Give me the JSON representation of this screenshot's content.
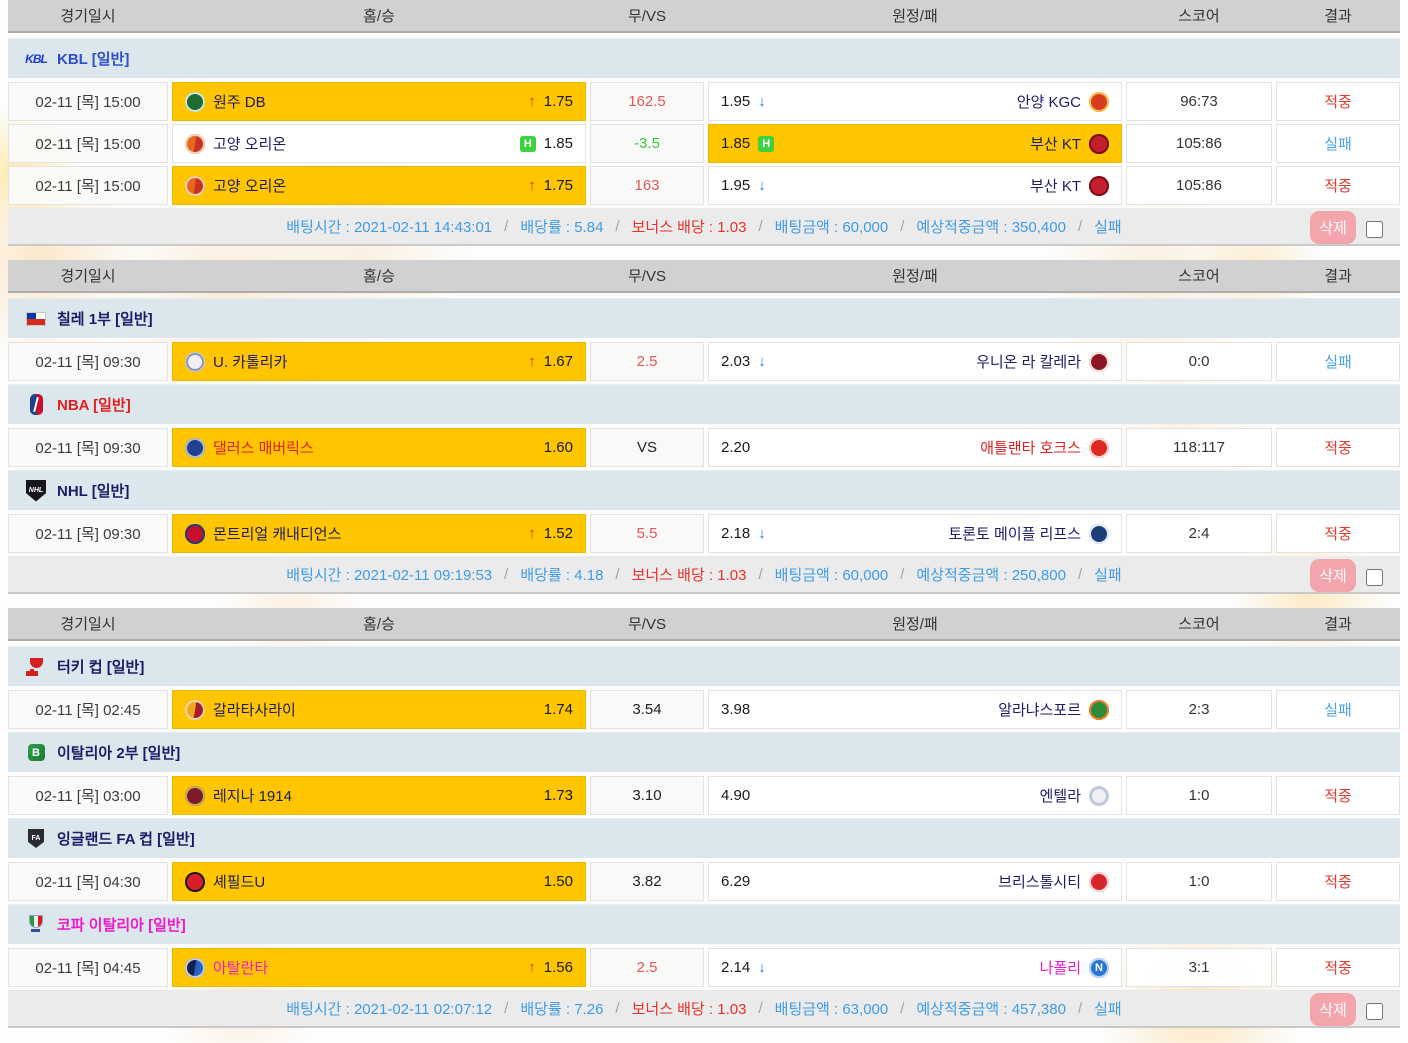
{
  "columns": [
    "경기일시",
    "홈/승",
    "무/VS",
    "원정/패",
    "스코어",
    "결과"
  ],
  "glyphs": {
    "up": "↑",
    "down": "↓",
    "handicap": "H"
  },
  "colors": {
    "highlight": "#ffc600",
    "win": "#e03a30",
    "lose": "#4ba2e8",
    "up": "#e8241c",
    "down": "#1c78e8",
    "hgreen": "#3ed13e",
    "blue": "#2d4fc8",
    "red": "#e02020",
    "navy": "#1b1b66",
    "magenta": "#ee18cc",
    "sumblue": "#3f9ce2",
    "sumred": "#e8302c"
  },
  "team_icons": {
    "wonju-db": {
      "c1": "#1e6b33",
      "ring": "#d8e8d8"
    },
    "goyang-orion": {
      "c1": "#e8661e",
      "c2": "#c8321e",
      "ring": "#f2d2b8"
    },
    "anyang-kgc": {
      "c1": "#d83c1e",
      "ring": "#f5c24a"
    },
    "busan-kt": {
      "c1": "#c41f2e",
      "ring": "#7a1016"
    },
    "u-catolica": {
      "c1": "#eef0f5",
      "ring": "#8894b8",
      "border": "#c8ccd8"
    },
    "union-la-calera": {
      "c1": "#8e1622",
      "ring": "#f0e8e0"
    },
    "dallas-mavericks": {
      "c1": "#20408f",
      "ring": "#b0bcd0"
    },
    "atlanta-hawks": {
      "c1": "#e0281e",
      "ring": "#f8d8d4"
    },
    "montreal-canadiens": {
      "c1": "#c8102e",
      "ring": "#1c3e78"
    },
    "toronto-maple-leafs": {
      "c1": "#1c3e78",
      "ring": "#e8edf5"
    },
    "galatasaray": {
      "c1": "#f2a71b",
      "c2": "#a81c28",
      "ring": "#e8d8b0"
    },
    "alanyaspor": {
      "c1": "#2c8c3c",
      "ring": "#f08028"
    },
    "reggina-1914": {
      "c1": "#7c1c2a",
      "ring": "#c8a85c"
    },
    "entella": {
      "c1": "#eef0f6",
      "ring": "#b8c4dc",
      "border": "#c8cede"
    },
    "sheffield-utd": {
      "c1": "#d81e28",
      "ring": "#1a1a1a"
    },
    "bristol-city": {
      "c1": "#d8242c",
      "ring": "#f5dada"
    },
    "napoli": {
      "c1": "#2878d0",
      "ring": "#b8d4f0",
      "letter": "N",
      "letter_color": "#ffffff"
    },
    "atalanta": {
      "c1": "#16204c",
      "c2": "#2a62c4",
      "ring": "#c8cede"
    }
  },
  "slips": [
    {
      "groups": [
        {
          "league": {
            "name": "KBL [일반]",
            "tone": "blue",
            "icon": "kbl"
          },
          "team_tone": "navy",
          "games": [
            {
              "date": "02-11 [목] 15:00",
              "home": {
                "team": "원주 DB",
                "odds": "1.75",
                "marker": "up",
                "selected": true,
                "icon": "wonju-db"
              },
              "draw": {
                "value": "162.5",
                "tone": "red"
              },
              "away": {
                "team": "안양 KGC",
                "odds": "1.95",
                "marker": "down",
                "selected": false,
                "icon": "anyang-kgc"
              },
              "score": "96:73",
              "result": {
                "label": "적중",
                "tone": "win"
              }
            },
            {
              "date": "02-11 [목] 15:00",
              "home": {
                "team": "고양 오리온",
                "odds": "1.85",
                "marker": "handicap",
                "selected": false,
                "icon": "goyang-orion"
              },
              "draw": {
                "value": "-3.5",
                "tone": "green"
              },
              "away": {
                "team": "부산 KT",
                "odds": "1.85",
                "marker": "handicap",
                "selected": true,
                "icon": "busan-kt"
              },
              "score": "105:86",
              "result": {
                "label": "실패",
                "tone": "lose"
              }
            },
            {
              "date": "02-11 [목] 15:00",
              "home": {
                "team": "고양 오리온",
                "odds": "1.75",
                "marker": "up",
                "selected": true,
                "icon": "goyang-orion"
              },
              "draw": {
                "value": "163",
                "tone": "red"
              },
              "away": {
                "team": "부산 KT",
                "odds": "1.95",
                "marker": "down",
                "selected": false,
                "icon": "busan-kt"
              },
              "score": "105:86",
              "result": {
                "label": "적중",
                "tone": "win"
              }
            }
          ]
        }
      ],
      "summary": {
        "parts": [
          {
            "text": "배팅시간 : 2021-02-11 14:43:01",
            "tone": "blue"
          },
          {
            "text": "/",
            "tone": "gray"
          },
          {
            "text": "배당률 : 5.84",
            "tone": "blue"
          },
          {
            "text": "/",
            "tone": "gray"
          },
          {
            "text": "보너스 배당 : 1.03",
            "tone": "red"
          },
          {
            "text": "/",
            "tone": "gray"
          },
          {
            "text": "배팅금액 : 60,000",
            "tone": "blue"
          },
          {
            "text": "/",
            "tone": "gray"
          },
          {
            "text": "예상적중금액 : 350,400",
            "tone": "blue"
          },
          {
            "text": "/",
            "tone": "gray"
          },
          {
            "text": "실패",
            "tone": "blue"
          }
        ],
        "delete_label": "삭제"
      }
    },
    {
      "groups": [
        {
          "league": {
            "name": "칠레 1부 [일반]",
            "tone": "navy",
            "icon": "chile"
          },
          "team_tone": "navy",
          "games": [
            {
              "date": "02-11 [목] 09:30",
              "home": {
                "team": "U. 카톨리카",
                "odds": "1.67",
                "marker": "up",
                "selected": true,
                "icon": "u-catolica"
              },
              "draw": {
                "value": "2.5",
                "tone": "red"
              },
              "away": {
                "team": "우니온 라 칼레라",
                "odds": "2.03",
                "marker": "down",
                "selected": false,
                "icon": "union-la-calera"
              },
              "score": "0:0",
              "result": {
                "label": "실패",
                "tone": "lose"
              }
            }
          ]
        },
        {
          "league": {
            "name": "NBA [일반]",
            "tone": "red",
            "icon": "nba"
          },
          "team_tone": "red",
          "games": [
            {
              "date": "02-11 [목] 09:30",
              "home": {
                "team": "댈러스 매버릭스",
                "odds": "1.60",
                "marker": "none",
                "selected": true,
                "icon": "dallas-mavericks"
              },
              "draw": {
                "value": "VS",
                "tone": "dark"
              },
              "away": {
                "team": "애틀랜타 호크스",
                "odds": "2.20",
                "marker": "none",
                "selected": false,
                "icon": "atlanta-hawks"
              },
              "score": "118:117",
              "result": {
                "label": "적중",
                "tone": "win"
              }
            }
          ]
        },
        {
          "league": {
            "name": "NHL [일반]",
            "tone": "navy",
            "icon": "nhl"
          },
          "team_tone": "navy",
          "games": [
            {
              "date": "02-11 [목] 09:30",
              "home": {
                "team": "몬트리얼 캐내디언스",
                "odds": "1.52",
                "marker": "up",
                "selected": true,
                "icon": "montreal-canadiens"
              },
              "draw": {
                "value": "5.5",
                "tone": "red"
              },
              "away": {
                "team": "토론토 메이플 리프스",
                "odds": "2.18",
                "marker": "down",
                "selected": false,
                "icon": "toronto-maple-leafs"
              },
              "score": "2:4",
              "result": {
                "label": "적중",
                "tone": "win"
              }
            }
          ]
        }
      ],
      "summary": {
        "parts": [
          {
            "text": "배팅시간 : 2021-02-11 09:19:53",
            "tone": "blue"
          },
          {
            "text": "/",
            "tone": "gray"
          },
          {
            "text": "배당률 : 4.18",
            "tone": "blue"
          },
          {
            "text": "/",
            "tone": "gray"
          },
          {
            "text": "보너스 배당 : 1.03",
            "tone": "red"
          },
          {
            "text": "/",
            "tone": "gray"
          },
          {
            "text": "배팅금액 : 60,000",
            "tone": "blue"
          },
          {
            "text": "/",
            "tone": "gray"
          },
          {
            "text": "예상적중금액 : 250,800",
            "tone": "blue"
          },
          {
            "text": "/",
            "tone": "gray"
          },
          {
            "text": "실패",
            "tone": "blue"
          }
        ],
        "delete_label": "삭제"
      }
    },
    {
      "groups": [
        {
          "league": {
            "name": "터키 컵 [일반]",
            "tone": "navy",
            "icon": "turkey"
          },
          "team_tone": "navy",
          "games": [
            {
              "date": "02-11 [목] 02:45",
              "home": {
                "team": "갈라타사라이",
                "odds": "1.74",
                "marker": "none",
                "selected": true,
                "icon": "galatasaray"
              },
              "draw": {
                "value": "3.54",
                "tone": "dark"
              },
              "away": {
                "team": "알라냐스포르",
                "odds": "3.98",
                "marker": "none",
                "selected": false,
                "icon": "alanyaspor"
              },
              "score": "2:3",
              "result": {
                "label": "실패",
                "tone": "lose"
              }
            }
          ]
        },
        {
          "league": {
            "name": "이탈리아 2부 [일반]",
            "tone": "navy",
            "icon": "serieb"
          },
          "team_tone": "navy",
          "games": [
            {
              "date": "02-11 [목] 03:00",
              "home": {
                "team": "레지나 1914",
                "odds": "1.73",
                "marker": "none",
                "selected": true,
                "icon": "reggina-1914"
              },
              "draw": {
                "value": "3.10",
                "tone": "dark"
              },
              "away": {
                "team": "엔텔라",
                "odds": "4.90",
                "marker": "none",
                "selected": false,
                "icon": "entella"
              },
              "score": "1:0",
              "result": {
                "label": "적중",
                "tone": "win"
              }
            }
          ]
        },
        {
          "league": {
            "name": "잉글랜드 FA 컵 [일반]",
            "tone": "navy",
            "icon": "facup"
          },
          "team_tone": "navy",
          "games": [
            {
              "date": "02-11 [목] 04:30",
              "home": {
                "team": "셰필드U",
                "odds": "1.50",
                "marker": "none",
                "selected": true,
                "icon": "sheffield-utd"
              },
              "draw": {
                "value": "3.82",
                "tone": "dark"
              },
              "away": {
                "team": "브리스톨시티",
                "odds": "6.29",
                "marker": "none",
                "selected": false,
                "icon": "bristol-city"
              },
              "score": "1:0",
              "result": {
                "label": "적중",
                "tone": "win"
              }
            }
          ]
        },
        {
          "league": {
            "name": "코파 이탈리아 [일반]",
            "tone": "magenta",
            "icon": "coppa"
          },
          "team_tone": "magenta",
          "games": [
            {
              "date": "02-11 [목] 04:45",
              "home": {
                "team": "아탈란타",
                "odds": "1.56",
                "marker": "up",
                "selected": true,
                "icon": "atalanta"
              },
              "draw": {
                "value": "2.5",
                "tone": "red"
              },
              "away": {
                "team": "나폴리",
                "odds": "2.14",
                "marker": "down",
                "selected": false,
                "icon": "napoli"
              },
              "score": "3:1",
              "result": {
                "label": "적중",
                "tone": "win"
              }
            }
          ]
        }
      ],
      "summary": {
        "parts": [
          {
            "text": "배팅시간 : 2021-02-11 02:07:12",
            "tone": "blue"
          },
          {
            "text": "/",
            "tone": "gray"
          },
          {
            "text": "배당률 : 7.26",
            "tone": "blue"
          },
          {
            "text": "/",
            "tone": "gray"
          },
          {
            "text": "보너스 배당 : 1.03",
            "tone": "red"
          },
          {
            "text": "/",
            "tone": "gray"
          },
          {
            "text": "배팅금액 : 63,000",
            "tone": "blue"
          },
          {
            "text": "/",
            "tone": "gray"
          },
          {
            "text": "예상적중금액 : 457,380",
            "tone": "blue"
          },
          {
            "text": "/",
            "tone": "gray"
          },
          {
            "text": "실패",
            "tone": "blue"
          }
        ],
        "delete_label": "삭제"
      }
    }
  ]
}
